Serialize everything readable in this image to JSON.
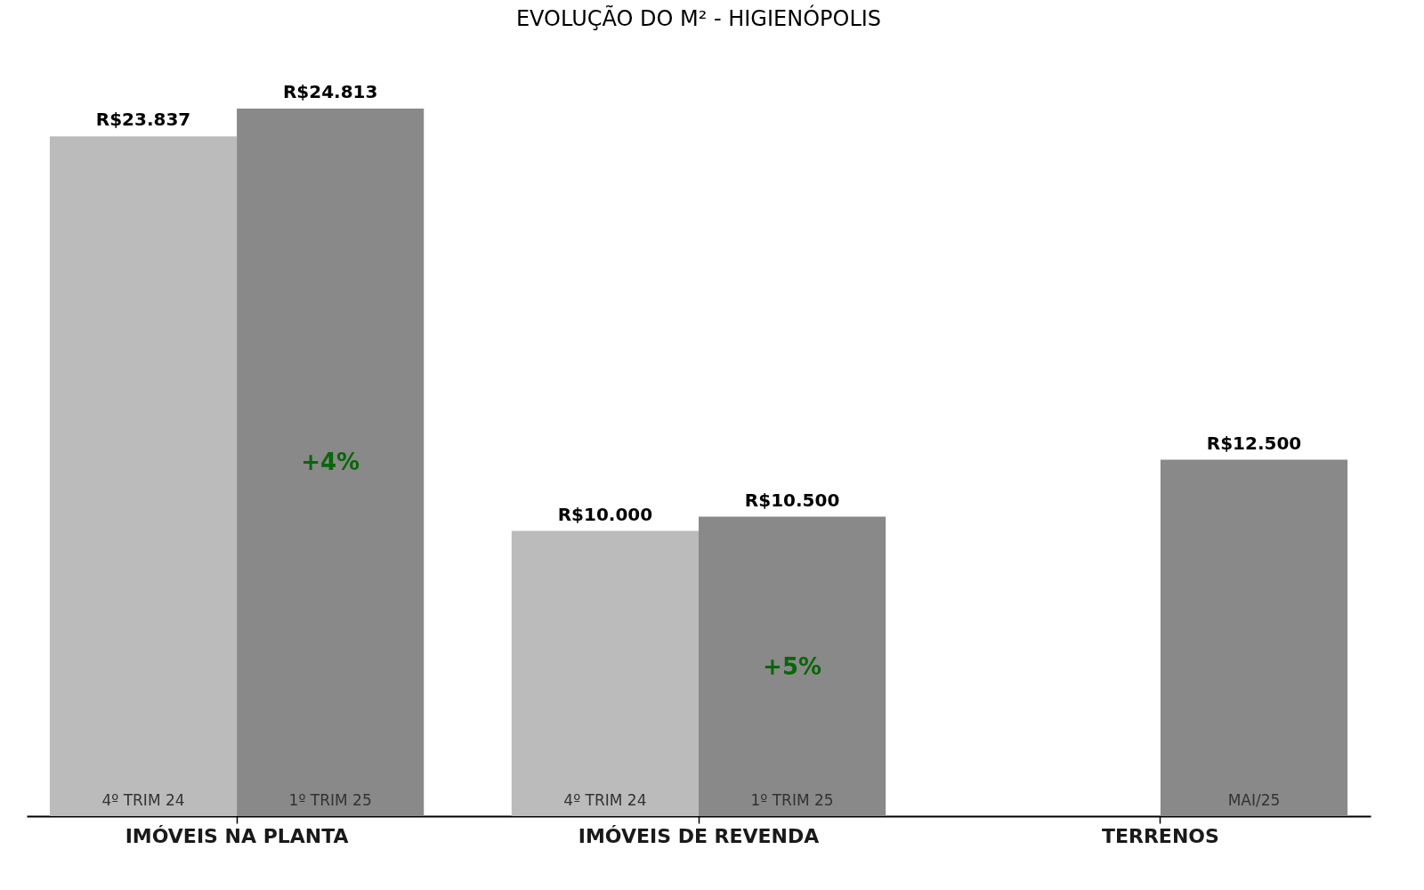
{
  "chart_data": {
    "type": "bar",
    "title": "EVOLUÇÃO DO M² - HIGIENÓPOLIS",
    "categories": [
      "IMÓVEIS NA PLANTA",
      "IMÓVEIS DE REVENDA",
      "TERRENOS"
    ],
    "series": [
      {
        "name": "4º TRIM 24",
        "color": "#bbbbbb",
        "values": [
          23837,
          10000,
          null
        ],
        "value_labels": [
          "R$23.837",
          "R$10.000",
          null
        ]
      },
      {
        "name": "1º TRIM 25",
        "color": "#898989",
        "values": [
          24813,
          10500,
          null
        ],
        "value_labels": [
          "R$24.813",
          "R$10.500",
          null
        ]
      },
      {
        "name": "MAI/25",
        "color": "#898989",
        "values": [
          null,
          null,
          12500
        ],
        "value_labels": [
          null,
          null,
          "R$12.500"
        ]
      }
    ],
    "annotations": [
      {
        "text": "+4%",
        "x": "IMÓVEIS NA PLANTA",
        "y": 12400
      },
      {
        "text": "+5%",
        "x": "IMÓVEIS DE REVENDA",
        "y": 5200
      }
    ],
    "legend": false,
    "grid": false
  }
}
